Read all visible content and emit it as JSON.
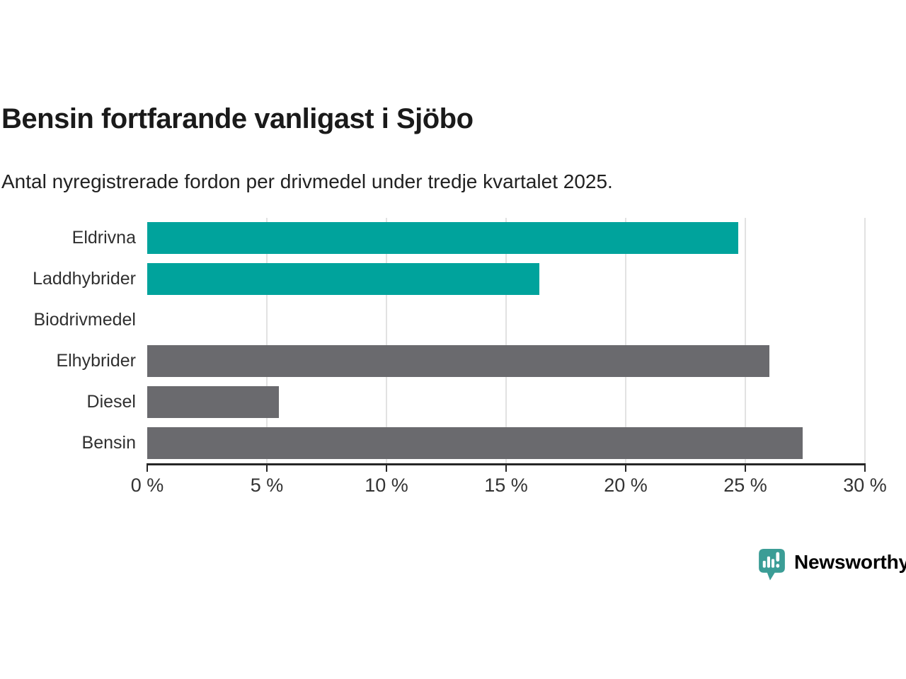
{
  "title": "Bensin fortfarande vanligast i Sjöbo",
  "subtitle": "Antal nyregistrerade fordon per drivmedel under tredje kvartalet 2025.",
  "colors": {
    "teal_bar": "#00A39C",
    "gray_bar": "#6A6A6E",
    "grid": "#e2e2e2",
    "axis": "#262626",
    "text_dark": "#1a1a1a",
    "text_label": "#303030",
    "logo_teal": "#3B9D96"
  },
  "chart_data": {
    "type": "bar",
    "orientation": "horizontal",
    "title": "Bensin fortfarande vanligast i Sjöbo",
    "subtitle": "Antal nyregistrerade fordon per drivmedel under tredje kvartalet 2025.",
    "categories": [
      "Eldrivna",
      "Laddhybrider",
      "Biodrivmedel",
      "Elhybrider",
      "Diesel",
      "Bensin"
    ],
    "values": [
      24.7,
      16.4,
      0,
      26.0,
      5.5,
      27.4
    ],
    "unit": "%",
    "bar_colors": [
      "#00A39C",
      "#00A39C",
      "#00A39C",
      "#6A6A6E",
      "#6A6A6E",
      "#6A6A6E"
    ],
    "xlim": [
      0,
      30
    ],
    "x_tick_values": [
      0,
      5,
      10,
      15,
      20,
      25,
      30
    ],
    "x_tick_labels": [
      "0 %",
      "5 %",
      "10 %",
      "15 %",
      "20 %",
      "25 %",
      "30 %"
    ],
    "gridline_values": [
      5,
      10,
      15,
      20,
      25,
      30
    ],
    "grid": true,
    "legend": false
  },
  "branding": {
    "logo_text": "Newsworthy",
    "logo_icon": "newsworthy-speech-bubble-bar-chart-icon"
  }
}
